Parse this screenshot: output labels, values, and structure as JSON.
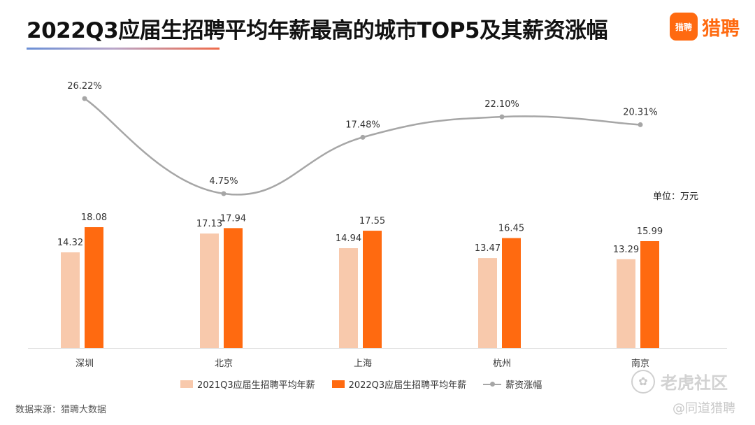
{
  "title": "2022Q3应届生招聘平均年薪最高的城市TOP5及其薪资涨幅",
  "logo": {
    "mark_text": "猎聘",
    "text": "猎聘"
  },
  "unit_label": "单位：万元",
  "source": "数据来源：猎聘大数据",
  "watermark": {
    "primary": "老虎社区",
    "secondary": "@同道猎聘",
    "icon": "tiger-icon"
  },
  "colors": {
    "bar_2021": "#f8c9ac",
    "bar_2022": "#ff6a10",
    "line": "#a6a6a6",
    "brand": "#ff6a10"
  },
  "legend": {
    "s2021": "2021Q3应届生招聘平均年薪",
    "s2022": "2022Q3应届生招聘平均年薪",
    "growth": "薪资涨幅"
  },
  "chart_data": {
    "type": "bar",
    "title": "2022Q3应届生招聘平均年薪最高的城市TOP5及其薪资涨幅",
    "categories": [
      "深圳",
      "北京",
      "上海",
      "杭州",
      "南京"
    ],
    "series": [
      {
        "name": "2021Q3应届生招聘平均年薪",
        "type": "bar",
        "values": [
          14.32,
          17.13,
          14.94,
          13.47,
          13.29
        ],
        "labels": [
          "14.32",
          "17.13",
          "14.94",
          "13.47",
          "13.29"
        ]
      },
      {
        "name": "2022Q3应届生招聘平均年薪",
        "type": "bar",
        "values": [
          18.08,
          17.94,
          17.55,
          16.45,
          15.99
        ],
        "labels": [
          "18.08",
          "17.94",
          "17.55",
          "16.45",
          "15.99"
        ]
      },
      {
        "name": "薪资涨幅",
        "type": "line",
        "values": [
          26.22,
          4.75,
          17.48,
          22.1,
          20.31
        ],
        "labels": [
          "26.22%",
          "4.75%",
          "17.48%",
          "22.10%",
          "20.31%"
        ]
      }
    ],
    "bar_axis_range": [
      0,
      18.08
    ],
    "line_axis_range": [
      4.75,
      26.22
    ],
    "ylabel": "单位：万元",
    "grid": false
  }
}
